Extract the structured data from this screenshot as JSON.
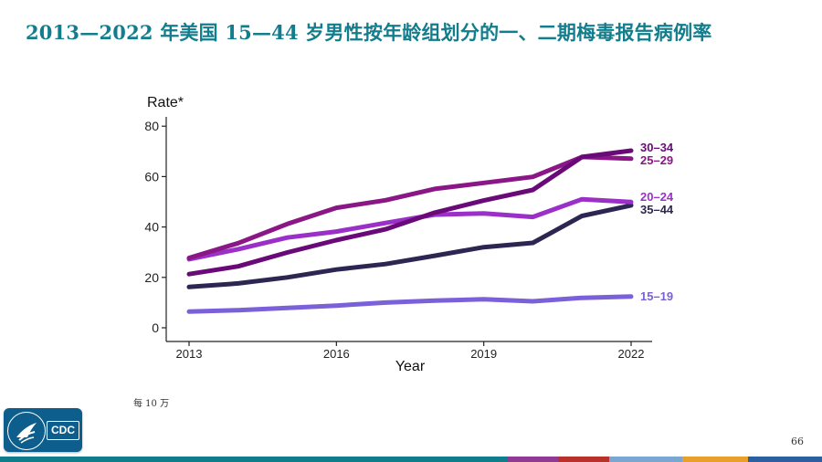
{
  "slide": {
    "title": "2013—2022 年美国 15—44 岁男性按年龄组划分的一、二期梅毒报告病例率",
    "footnote": "每 10 万",
    "page_number": "66",
    "logo_text": "CDC"
  },
  "colors": {
    "title": "#127d8c",
    "bar": [
      "#0f7d8c",
      "#8f3b95",
      "#b8322b",
      "#7aa7d1",
      "#e8a02a",
      "#2c5fa0"
    ]
  },
  "chart_data": {
    "type": "line",
    "title": "",
    "xlabel": "Year",
    "ylabel": "Rate*",
    "x": [
      2013,
      2014,
      2015,
      2016,
      2017,
      2018,
      2019,
      2020,
      2021,
      2022
    ],
    "xticks": [
      2013,
      2016,
      2019,
      2022
    ],
    "yticks": [
      0,
      20,
      40,
      60,
      80
    ],
    "ylim": [
      0,
      83
    ],
    "xlim": [
      2013,
      2022
    ],
    "grid": false,
    "series": [
      {
        "name": "15–19",
        "color": "#7b61d9",
        "values": [
          6.4,
          7.0,
          7.9,
          8.8,
          10.0,
          10.8,
          11.3,
          10.5,
          11.9,
          12.4
        ]
      },
      {
        "name": "35–44",
        "color": "#2c2652",
        "values": [
          16.2,
          17.6,
          20.0,
          23.1,
          25.3,
          28.6,
          32.0,
          33.7,
          44.4,
          48.6
        ]
      },
      {
        "name": "20–24",
        "color": "#9b30c8",
        "values": [
          27.2,
          31.2,
          35.8,
          38.2,
          41.6,
          44.9,
          45.4,
          44.0,
          51.0,
          49.9
        ]
      },
      {
        "name": "25–29",
        "color": "#8a1785",
        "values": [
          27.7,
          33.6,
          41.2,
          47.6,
          50.6,
          55.1,
          57.5,
          59.9,
          67.8,
          67.1
        ]
      },
      {
        "name": "30–34",
        "color": "#6a0a78",
        "values": [
          21.3,
          24.4,
          29.9,
          34.8,
          39.1,
          45.7,
          50.5,
          54.7,
          67.8,
          70.3
        ]
      }
    ]
  }
}
